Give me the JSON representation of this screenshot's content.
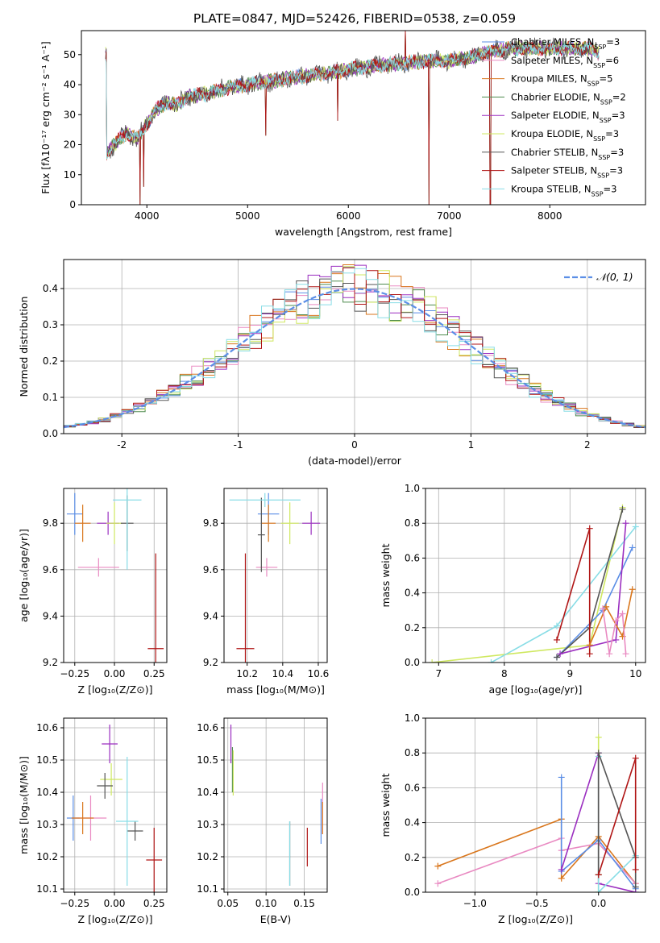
{
  "figure_title": "PLATE=0847, MJD=52426, FIBERID=0538, z=0.059",
  "colors": {
    "Chabrier MILES": "#5b8ee6",
    "Salpeter MILES": "#e98ac2",
    "Kroupa MILES": "#d9761c",
    "Chabrier ELODIE": "#4e8b4e",
    "Salpeter ELODIE": "#9b2fc0",
    "Kroupa ELODIE": "#cfe860",
    "Chabrier STELIB": "#555555",
    "Salpeter STELIB": "#b01515",
    "Kroupa STELIB": "#88dde6",
    "normal": "#5b8ee6"
  },
  "chart_data": [
    {
      "id": "spectrum",
      "type": "line",
      "xlabel": "wavelength [Angstrom, rest frame]",
      "ylabel": "Flux [fλ10⁻¹⁷ erg cm⁻² s⁻¹ A⁻¹]",
      "xlim": [
        3350,
        8950
      ],
      "ylim": [
        0,
        58
      ],
      "xticks": [
        4000,
        5000,
        6000,
        7000,
        8000
      ],
      "yticks": [
        0,
        10,
        20,
        30,
        40,
        50
      ],
      "legend": [
        {
          "name": "Chabrier MILES",
          "nssp": "3"
        },
        {
          "name": "Salpeter MILES",
          "nssp": "6"
        },
        {
          "name": "Kroupa MILES",
          "nssp": "5"
        },
        {
          "name": "Chabrier ELODIE",
          "nssp": "2"
        },
        {
          "name": "Salpeter ELODIE",
          "nssp": "3"
        },
        {
          "name": "Kroupa ELODIE",
          "nssp": "3"
        },
        {
          "name": "Chabrier STELIB",
          "nssp": "3"
        },
        {
          "name": "Salpeter STELIB",
          "nssp": "3"
        },
        {
          "name": "Kroupa STELIB",
          "nssp": "3"
        }
      ],
      "continuum": {
        "x": [
          3600,
          3700,
          3800,
          3900,
          4000,
          4100,
          4200,
          4300,
          4400,
          4600,
          4800,
          5000,
          5200,
          5400,
          5600,
          5800,
          6000,
          6200,
          6500,
          6800,
          7000,
          7200,
          7400,
          7600,
          8000,
          8400,
          8500
        ],
        "y": [
          17,
          21,
          24,
          22,
          27,
          32,
          34,
          33,
          36,
          37,
          39,
          40,
          41,
          42,
          43,
          44,
          45,
          46,
          47,
          48,
          48,
          49,
          51,
          52,
          52,
          52,
          50
        ]
      },
      "spikes": [
        {
          "x": 3933,
          "y": 0
        },
        {
          "x": 3968,
          "y": 6
        },
        {
          "x": 5180,
          "y": 23
        },
        {
          "x": 5895,
          "y": 28
        },
        {
          "x": 6565,
          "y": 59
        },
        {
          "x": 6800,
          "y": 0
        },
        {
          "x": 7410,
          "y": 0
        }
      ]
    },
    {
      "id": "residuals",
      "type": "step",
      "xlabel": "(data-model)/error",
      "ylabel": "Normed distribution",
      "xlim": [
        -2.5,
        2.5
      ],
      "ylim": [
        0,
        0.48
      ],
      "xticks": [
        -2,
        -1,
        0,
        1,
        2
      ],
      "yticks": [
        0.0,
        0.1,
        0.2,
        0.3,
        0.4
      ],
      "legend_label": "𝒩(0, 1)",
      "normal": {
        "mu": 0,
        "sigma": 1
      }
    },
    {
      "id": "age_vs_Z",
      "type": "errorbar",
      "xlabel": "Z [log₁₀(Z/Z⊙)]",
      "ylabel": "age  [log₁₀(age/yr)]",
      "xlim": [
        -0.32,
        0.33
      ],
      "ylim": [
        9.2,
        9.95
      ],
      "xticks": [
        -0.25,
        0.0,
        0.25
      ],
      "xticklabels": [
        "−0.25",
        "0.00",
        "0.25"
      ],
      "yticks": [
        9.2,
        9.4,
        9.6,
        9.8
      ],
      "points": [
        {
          "model": "Chabrier MILES",
          "x": -0.25,
          "y": 9.84,
          "xerr": 0.05,
          "yerr": 0.09
        },
        {
          "model": "Salpeter MILES",
          "x": -0.1,
          "y": 9.61,
          "xerr": 0.13,
          "yerr": 0.04
        },
        {
          "model": "Kroupa MILES",
          "x": -0.2,
          "y": 9.8,
          "xerr": 0.05,
          "yerr": 0.08
        },
        {
          "model": "Salpeter ELODIE",
          "x": -0.04,
          "y": 9.8,
          "xerr": 0.07,
          "yerr": 0.05
        },
        {
          "model": "Kroupa ELODIE",
          "x": 0.0,
          "y": 9.8,
          "xerr": 0.05,
          "yerr": 0.09
        },
        {
          "model": "Chabrier STELIB",
          "x": 0.08,
          "y": 9.8,
          "xerr": 0.04,
          "yerr": 0.12
        },
        {
          "model": "Kroupa STELIB",
          "x": 0.08,
          "y": 9.9,
          "xerr": 0.09,
          "yerr": 0.3
        },
        {
          "model": "Salpeter STELIB",
          "x": 0.26,
          "y": 9.26,
          "xerr": 0.05,
          "yerr": 0.41
        }
      ]
    },
    {
      "id": "age_vs_mass",
      "type": "errorbar",
      "xlabel": "mass [log₁₀(M/M⊙)]",
      "ylabel": "",
      "xlim": [
        10.07,
        10.65
      ],
      "ylim": [
        9.2,
        9.95
      ],
      "xticks": [
        10.2,
        10.4,
        10.6
      ],
      "yticks": [
        9.2,
        9.4,
        9.6,
        9.8
      ],
      "points": [
        {
          "model": "Chabrier MILES",
          "x": 10.32,
          "y": 9.84,
          "xerr": 0.06,
          "yerr": 0.09
        },
        {
          "model": "Salpeter MILES",
          "x": 10.31,
          "y": 9.61,
          "xerr": 0.06,
          "yerr": 0.04
        },
        {
          "model": "Kroupa MILES",
          "x": 10.32,
          "y": 9.8,
          "xerr": 0.04,
          "yerr": 0.08
        },
        {
          "model": "Salpeter ELODIE",
          "x": 10.56,
          "y": 9.8,
          "xerr": 0.05,
          "yerr": 0.05
        },
        {
          "model": "Kroupa ELODIE",
          "x": 10.44,
          "y": 9.8,
          "xerr": 0.05,
          "yerr": 0.09
        },
        {
          "model": "Chabrier STELIB",
          "x": 10.28,
          "y": 9.75,
          "xerr": 0.02,
          "yerr": 0.16
        },
        {
          "model": "Kroupa STELIB",
          "x": 10.3,
          "y": 9.9,
          "xerr": 0.2,
          "yerr": 0.03
        },
        {
          "model": "Salpeter STELIB",
          "x": 10.19,
          "y": 9.26,
          "xerr": 0.05,
          "yerr": 0.41
        }
      ]
    },
    {
      "id": "weight_vs_age",
      "type": "line",
      "xlabel": "age  [log₁₀(age/yr)]",
      "ylabel": "mass weight",
      "xlim": [
        6.8,
        10.15
      ],
      "ylim": [
        0,
        1.0
      ],
      "xticks": [
        7,
        8,
        9,
        10
      ],
      "yticks": [
        0.0,
        0.2,
        0.4,
        0.6,
        0.8,
        1.0
      ],
      "series": [
        {
          "model": "Kroupa ELODIE",
          "x": [
            6.9,
            9.3,
            9.8
          ],
          "y": [
            0.0,
            0.1,
            0.89
          ]
        },
        {
          "model": "Kroupa STELIB",
          "x": [
            7.8,
            8.8,
            10.0
          ],
          "y": [
            0.0,
            0.21,
            0.78
          ]
        },
        {
          "model": "Chabrier MILES",
          "x": [
            8.8,
            9.5,
            9.95
          ],
          "y": [
            0.03,
            0.3,
            0.66
          ]
        },
        {
          "model": "Chabrier STELIB",
          "x": [
            8.8,
            9.3,
            9.8
          ],
          "y": [
            0.03,
            0.2,
            0.88
          ]
        },
        {
          "model": "Salpeter STELIB",
          "x": [
            8.8,
            9.3,
            9.3
          ],
          "y": [
            0.13,
            0.77,
            0.05
          ]
        },
        {
          "model": "Salpeter ELODIE",
          "x": [
            8.85,
            9.7,
            9.85
          ],
          "y": [
            0.05,
            0.13,
            0.8
          ]
        },
        {
          "model": "Kroupa MILES",
          "x": [
            9.3,
            9.55,
            9.8,
            9.95
          ],
          "y": [
            0.1,
            0.32,
            0.15,
            0.42
          ]
        },
        {
          "model": "Salpeter MILES",
          "x": [
            9.5,
            9.6,
            9.7,
            9.8,
            9.85
          ],
          "y": [
            0.31,
            0.05,
            0.24,
            0.28,
            0.05
          ]
        }
      ]
    },
    {
      "id": "mass_vs_Z",
      "type": "errorbar",
      "xlabel": "Z [log₁₀(Z/Z⊙)]",
      "ylabel": "mass [log₁₀(M/M⊙)]",
      "xlim": [
        -0.32,
        0.33
      ],
      "ylim": [
        10.09,
        10.63
      ],
      "xticks": [
        -0.25,
        0.0,
        0.25
      ],
      "xticklabels": [
        "−0.25",
        "0.00",
        "0.25"
      ],
      "yticks": [
        10.1,
        10.2,
        10.3,
        10.4,
        10.5,
        10.6
      ],
      "points": [
        {
          "model": "Chabrier MILES",
          "x": -0.26,
          "y": 10.32,
          "xerr": 0.04,
          "yerr": 0.07
        },
        {
          "model": "Salpeter MILES",
          "x": -0.15,
          "y": 10.32,
          "xerr": 0.1,
          "yerr": 0.07
        },
        {
          "model": "Kroupa MILES",
          "x": -0.2,
          "y": 10.32,
          "xerr": 0.07,
          "yerr": 0.05
        },
        {
          "model": "Salpeter ELODIE",
          "x": -0.03,
          "y": 10.55,
          "xerr": 0.05,
          "yerr": 0.06
        },
        {
          "model": "Kroupa ELODIE",
          "x": -0.02,
          "y": 10.44,
          "xerr": 0.07,
          "yerr": 0.05
        },
        {
          "model": "Chabrier STELIB",
          "x": -0.06,
          "y": 10.42,
          "xerr": 0.05,
          "yerr": 0.04
        },
        {
          "model": "Chabrier STELIB",
          "x": 0.13,
          "y": 10.28,
          "xerr": 0.05,
          "yerr": 0.03
        },
        {
          "model": "Kroupa STELIB",
          "x": 0.08,
          "y": 10.31,
          "xerr": 0.07,
          "yerr": 0.2
        },
        {
          "model": "Salpeter STELIB",
          "x": 0.25,
          "y": 10.19,
          "xerr": 0.05,
          "yerr": 0.1
        }
      ]
    },
    {
      "id": "mass_vs_ebv",
      "type": "errorbar",
      "xlabel": "E(B-V)",
      "ylabel": "",
      "xlim": [
        0.045,
        0.18
      ],
      "ylim": [
        10.09,
        10.63
      ],
      "xticks": [
        0.05,
        0.1,
        0.15
      ],
      "xticklabels": [
        "0.05",
        "0.10",
        "0.15"
      ],
      "yticks": [
        10.1,
        10.2,
        10.3,
        10.4,
        10.5,
        10.6
      ],
      "points": [
        {
          "model": "Salpeter ELODIE",
          "x": 0.054,
          "y": 10.55,
          "xerr": 0,
          "yerr": 0.06
        },
        {
          "model": "Chabrier ELODIE",
          "x": 0.056,
          "y": 10.47,
          "xerr": 0,
          "yerr": 0.07
        },
        {
          "model": "Kroupa ELODIE",
          "x": 0.057,
          "y": 10.46,
          "xerr": 0,
          "yerr": 0.07
        },
        {
          "model": "Chabrier STELIB",
          "x": 0.131,
          "y": 10.21,
          "xerr": 0,
          "yerr": 0.1
        },
        {
          "model": "Kroupa STELIB",
          "x": 0.131,
          "y": 10.21,
          "xerr": 0,
          "yerr": 0.1
        },
        {
          "model": "Salpeter STELIB",
          "x": 0.154,
          "y": 10.23,
          "xerr": 0,
          "yerr": 0.06
        },
        {
          "model": "Chabrier MILES",
          "x": 0.172,
          "y": 10.31,
          "xerr": 0,
          "yerr": 0.07
        },
        {
          "model": "Salpeter MILES",
          "x": 0.174,
          "y": 10.35,
          "xerr": 0,
          "yerr": 0.08
        },
        {
          "model": "Kroupa MILES",
          "x": 0.174,
          "y": 10.32,
          "xerr": 0,
          "yerr": 0.05
        }
      ]
    },
    {
      "id": "weight_vs_Z",
      "type": "line",
      "xlabel": "Z [log₁₀(Z/Z⊙)]",
      "ylabel": "mass weight",
      "xlim": [
        -1.4,
        0.38
      ],
      "ylim": [
        0,
        1.0
      ],
      "xticks": [
        -1.0,
        -0.5,
        0.0
      ],
      "xticklabels": [
        "−1.0",
        "−0.5",
        "0.0"
      ],
      "yticks": [
        0.0,
        0.2,
        0.4,
        0.6,
        0.8,
        1.0
      ],
      "series": [
        {
          "model": "Kroupa MILES",
          "x": [
            -1.3,
            -0.3,
            -0.3,
            0.0,
            0.3
          ],
          "y": [
            0.15,
            0.42,
            0.08,
            0.32,
            0.05
          ]
        },
        {
          "model": "Salpeter MILES",
          "x": [
            -1.3,
            -0.3,
            -0.3,
            0.0,
            0.3
          ],
          "y": [
            0.05,
            0.31,
            0.24,
            0.28,
            0.05
          ]
        },
        {
          "model": "Chabrier MILES",
          "x": [
            -0.3,
            -0.3,
            0.0,
            0.3
          ],
          "y": [
            0.66,
            0.12,
            0.3,
            0.02
          ]
        },
        {
          "model": "Salpeter ELODIE",
          "x": [
            -0.3,
            0.0,
            0.0,
            0.3
          ],
          "y": [
            0.13,
            0.8,
            0.05,
            0.0
          ]
        },
        {
          "model": "Kroupa ELODIE",
          "x": [
            0.0,
            0.0,
            0.0
          ],
          "y": [
            0.89,
            0.1,
            0.0
          ]
        },
        {
          "model": "Kroupa STELIB",
          "x": [
            0.0,
            0.0,
            0.3,
            0.3
          ],
          "y": [
            0.78,
            0.0,
            0.21,
            0.2
          ]
        },
        {
          "model": "Chabrier STELIB",
          "x": [
            0.0,
            0.0,
            0.3,
            0.3
          ],
          "y": [
            0.1,
            0.8,
            0.2,
            0.03
          ]
        },
        {
          "model": "Salpeter STELIB",
          "x": [
            0.0,
            0.3,
            0.3
          ],
          "y": [
            0.1,
            0.77,
            0.13
          ]
        }
      ]
    }
  ]
}
